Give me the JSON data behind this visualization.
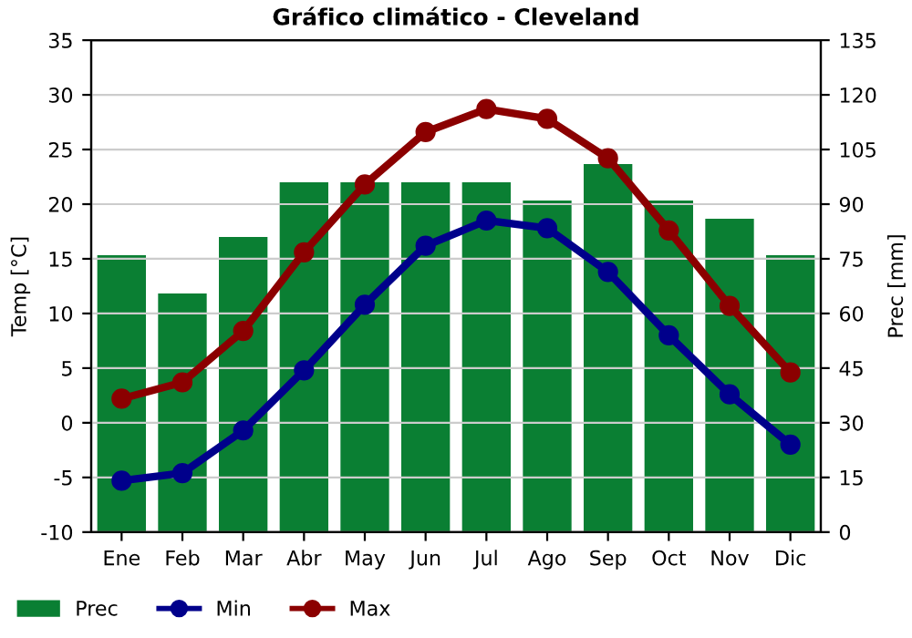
{
  "chart_data": {
    "type": "bar",
    "title": "Gráfico climático - Cleveland",
    "ylabel": "Temp [°C]",
    "y2label": "Prec [mm]",
    "categories": [
      "Ene",
      "Feb",
      "Mar",
      "Abr",
      "May",
      "Jun",
      "Jul",
      "Ago",
      "Sep",
      "Oct",
      "Nov",
      "Dic"
    ],
    "series": [
      {
        "name": "Prec",
        "axis": "y2",
        "color": "#0a7f33",
        "values": [
          76,
          65.5,
          81,
          96,
          96,
          96,
          96,
          91,
          101,
          91,
          86,
          76
        ]
      },
      {
        "name": "Min",
        "type": "line",
        "color": "#00008b",
        "marker": "circle",
        "values": [
          -5.3,
          -4.6,
          -0.7,
          4.8,
          10.8,
          16.2,
          18.5,
          17.8,
          13.8,
          8.0,
          2.6,
          -2.0
        ]
      },
      {
        "name": "Max",
        "type": "line",
        "color": "#8b0000",
        "marker": "circle",
        "values": [
          2.2,
          3.7,
          8.4,
          15.6,
          21.8,
          26.6,
          28.7,
          27.8,
          24.2,
          17.6,
          10.7,
          4.6
        ]
      }
    ],
    "ylim": [
      -10,
      35
    ],
    "yticks": [
      -10,
      -5,
      0,
      5,
      10,
      15,
      20,
      25,
      30,
      35
    ],
    "y2lim": [
      0,
      135
    ],
    "y2ticks": [
      0,
      15,
      30,
      45,
      60,
      75,
      90,
      105,
      120,
      135
    ],
    "grid": "y",
    "legend": "bottom left"
  }
}
